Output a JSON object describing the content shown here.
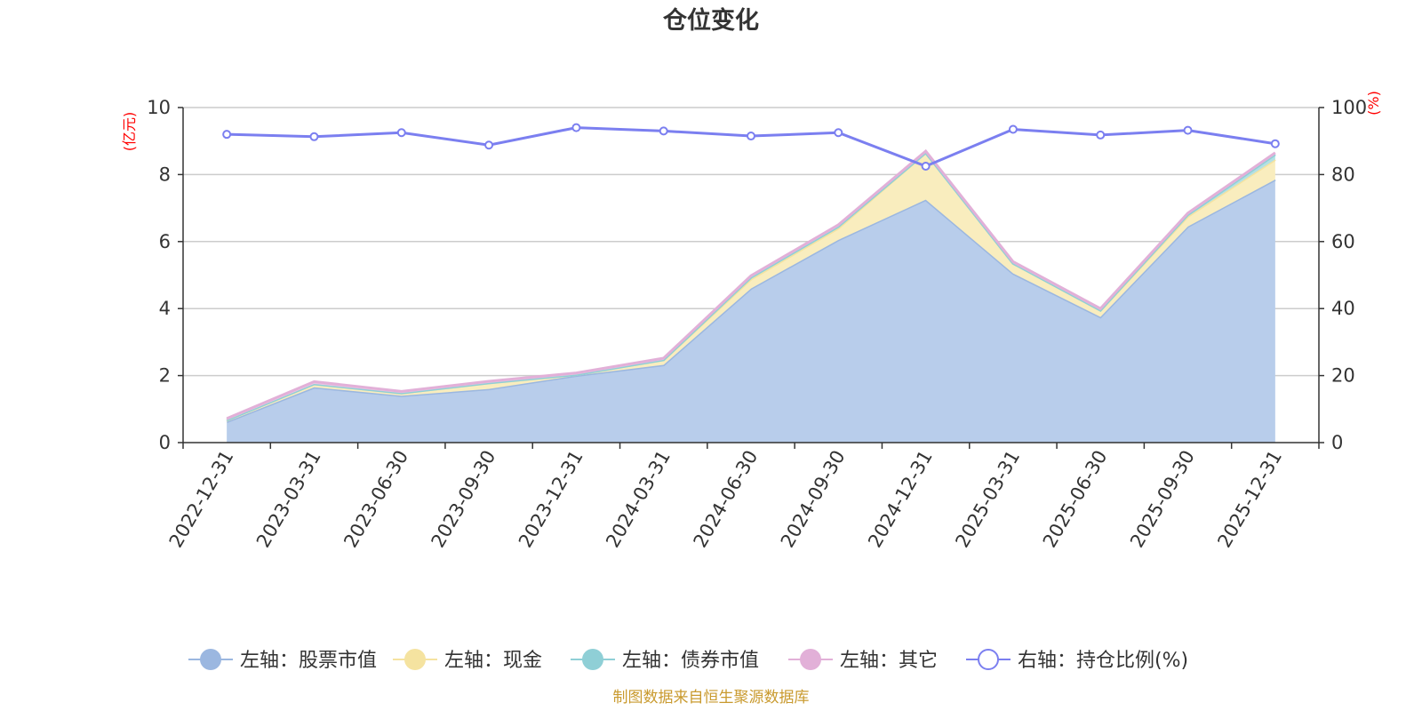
{
  "chart_data": {
    "type": "area",
    "title": "仓位变化",
    "left_axis_unit": "(亿元)",
    "right_axis_unit": "(%)",
    "categories": [
      "2022-12-31",
      "2023-03-31",
      "2023-06-30",
      "2023-09-30",
      "2023-12-31",
      "2024-03-31",
      "2024-06-30",
      "2024-09-30",
      "2024-12-31",
      "2025-03-31",
      "2025-06-30",
      "2025-09-30",
      "2025-12-31"
    ],
    "left_ylim": [
      0,
      10
    ],
    "left_ticks": [
      0,
      2,
      4,
      6,
      8,
      10
    ],
    "right_ylim": [
      0,
      100
    ],
    "right_ticks": [
      0,
      20,
      40,
      60,
      80,
      100
    ],
    "stacked": true,
    "grid": true,
    "legend_position": "bottom",
    "series": [
      {
        "name": "左轴：股票市值",
        "axis": "left",
        "kind": "area",
        "color": "#9bb7e0",
        "fill": "#b8cdeb",
        "values": [
          0.62,
          1.65,
          1.4,
          1.6,
          2.0,
          2.32,
          4.6,
          6.05,
          7.25,
          5.05,
          3.75,
          6.45,
          7.85
        ]
      },
      {
        "name": "左轴：现金",
        "axis": "left",
        "kind": "area",
        "color": "#f5e3a0",
        "fill": "#f9edbe",
        "values": [
          0.05,
          0.1,
          0.08,
          0.18,
          0.03,
          0.15,
          0.28,
          0.35,
          1.4,
          0.3,
          0.2,
          0.3,
          0.6
        ]
      },
      {
        "name": "左轴：债券市值",
        "axis": "left",
        "kind": "area",
        "color": "#8fcfd6",
        "fill": "#b3e0e4",
        "values": [
          0.0,
          0.0,
          0.0,
          0.0,
          0.0,
          0.0,
          0.05,
          0.05,
          0.0,
          0.0,
          0.0,
          0.05,
          0.15
        ]
      },
      {
        "name": "左轴：其它",
        "axis": "left",
        "kind": "area",
        "color": "#e2b0d8",
        "fill": "#ebc7e4",
        "values": [
          0.05,
          0.07,
          0.05,
          0.05,
          0.05,
          0.05,
          0.05,
          0.05,
          0.05,
          0.05,
          0.05,
          0.05,
          0.05
        ]
      },
      {
        "name": "右轴：持仓比例(%)",
        "axis": "right",
        "kind": "line",
        "color": "#7b7ff0",
        "values": [
          92.0,
          91.3,
          92.5,
          88.8,
          94.0,
          93.0,
          91.5,
          92.5,
          82.5,
          93.5,
          91.8,
          93.2,
          89.2
        ]
      }
    ],
    "source_note": "制图数据来自恒生聚源数据库"
  }
}
